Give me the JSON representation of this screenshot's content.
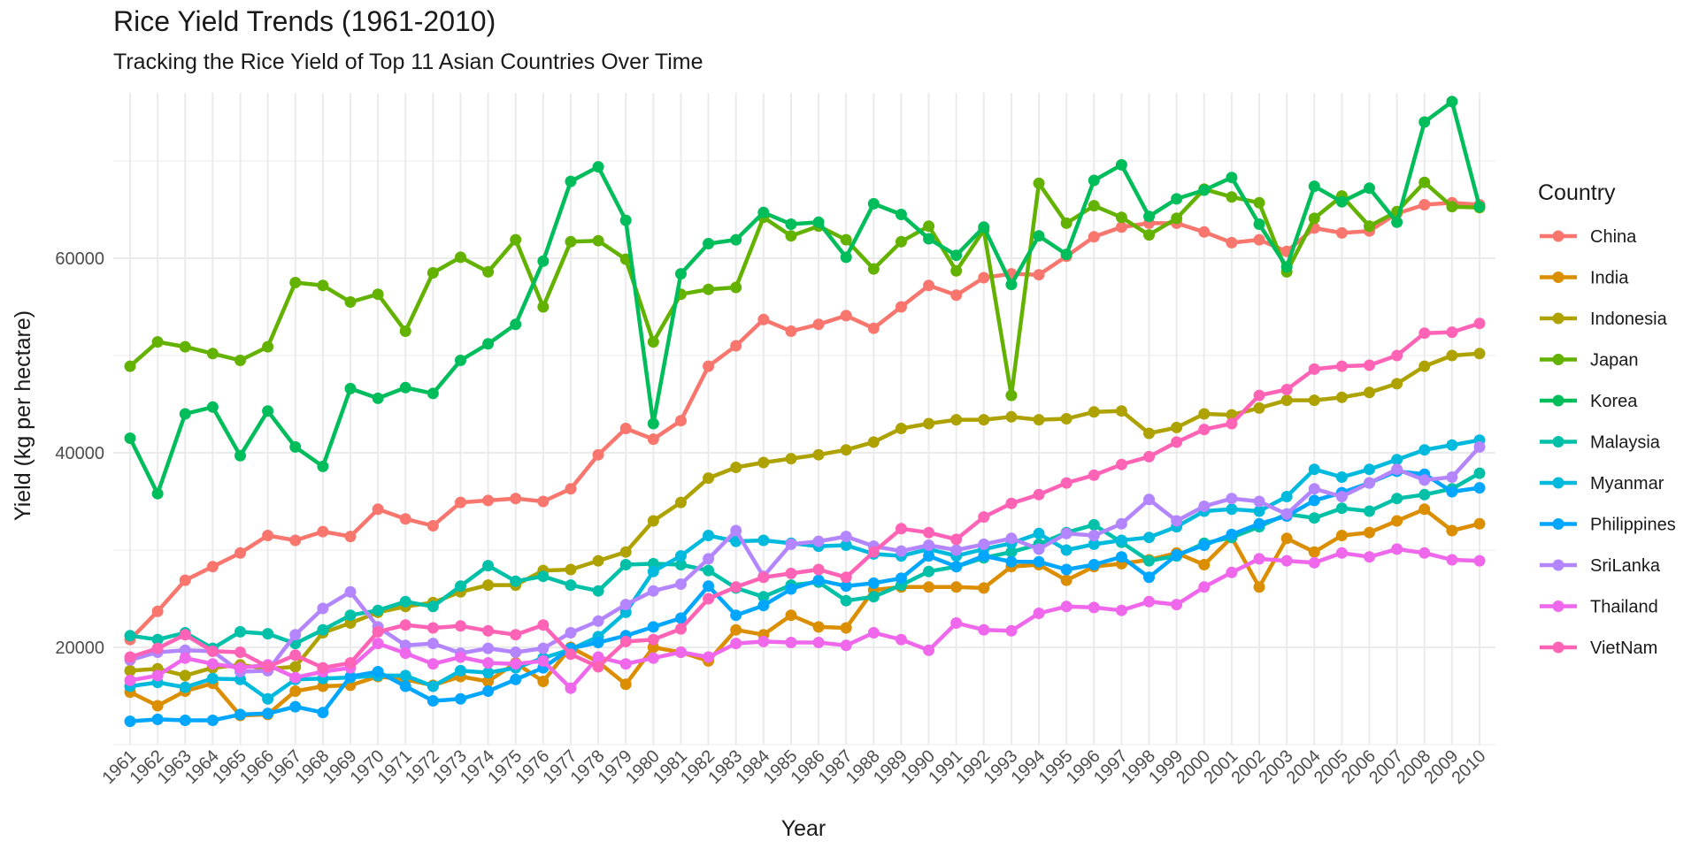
{
  "chart_data": {
    "type": "line",
    "title": "Rice Yield Trends (1961-2010)",
    "subtitle": "Tracking the Rice Yield of Top 11 Asian Countries Over Time",
    "xlabel": "Year",
    "ylabel": "Yield (kg per hectare)",
    "legend_title": "Country",
    "legend_position": "right",
    "grid": true,
    "xlim": [
      1961,
      2010
    ],
    "ylim": [
      10000,
      77000
    ],
    "y_ticks": [
      20000,
      40000,
      60000
    ],
    "x": [
      1961,
      1962,
      1963,
      1964,
      1965,
      1966,
      1967,
      1968,
      1969,
      1970,
      1971,
      1972,
      1973,
      1974,
      1975,
      1976,
      1977,
      1978,
      1979,
      1980,
      1981,
      1982,
      1983,
      1984,
      1985,
      1986,
      1987,
      1988,
      1989,
      1990,
      1991,
      1992,
      1993,
      1994,
      1995,
      1996,
      1997,
      1998,
      1999,
      2000,
      2001,
      2002,
      2003,
      2004,
      2005,
      2006,
      2007,
      2008,
      2009,
      2010
    ],
    "series": [
      {
        "name": "China",
        "color": "#F8766D",
        "values": [
          20800,
          23700,
          26900,
          28300,
          29700,
          31500,
          31000,
          31900,
          31400,
          34200,
          33200,
          32500,
          34900,
          35100,
          35300,
          35000,
          36300,
          39800,
          42500,
          41400,
          43300,
          48900,
          51000,
          53700,
          52500,
          53200,
          54100,
          52800,
          55000,
          57200,
          56200,
          58000,
          58400,
          58300,
          60200,
          62200,
          63200,
          63600,
          63600,
          62700,
          61600,
          61900,
          60700,
          63100,
          62600,
          62800,
          64600,
          65500,
          65700,
          65500
        ]
      },
      {
        "name": "India",
        "color": "#DB8E00",
        "values": [
          15400,
          14000,
          15500,
          16300,
          13000,
          13100,
          15500,
          16000,
          16100,
          17000,
          16700,
          16100,
          17000,
          16500,
          18400,
          16500,
          20000,
          18500,
          16200,
          20000,
          19500,
          18600,
          21800,
          21300,
          23300,
          22100,
          22000,
          25900,
          26200,
          26200,
          26200,
          26100,
          28300,
          28500,
          26900,
          28300,
          28600,
          29000,
          29700,
          28500,
          31300,
          26200,
          31200,
          29800,
          31500,
          31800,
          33000,
          34200,
          32000,
          32700
        ]
      },
      {
        "name": "Indonesia",
        "color": "#AEA200",
        "values": [
          17600,
          17800,
          17100,
          17900,
          18200,
          17800,
          18000,
          21500,
          22500,
          23600,
          24200,
          24600,
          25700,
          26400,
          26400,
          27900,
          28000,
          28900,
          29800,
          33000,
          34900,
          37400,
          38500,
          39000,
          39400,
          39800,
          40300,
          41100,
          42500,
          43000,
          43400,
          43400,
          43700,
          43400,
          43500,
          44200,
          44300,
          42000,
          42600,
          44000,
          43900,
          44600,
          45400,
          45400,
          45700,
          46200,
          47100,
          48900,
          50000,
          50200
        ]
      },
      {
        "name": "Japan",
        "color": "#64B200",
        "values": [
          48900,
          51400,
          50900,
          50200,
          49500,
          50900,
          57500,
          57200,
          55500,
          56300,
          52500,
          58500,
          60100,
          58600,
          61900,
          55000,
          61700,
          61800,
          59900,
          51400,
          56300,
          56800,
          57000,
          64200,
          62300,
          63300,
          61900,
          58900,
          61700,
          63300,
          58700,
          62900,
          45900,
          67700,
          63600,
          65400,
          64200,
          62400,
          64100,
          67100,
          66300,
          65700,
          58600,
          64100,
          66400,
          63300,
          64800,
          67800,
          65300,
          65200
        ]
      },
      {
        "name": "Korea",
        "color": "#00BD5C",
        "values": [
          41500,
          35800,
          44000,
          44700,
          39700,
          44300,
          40600,
          38600,
          46600,
          45600,
          46700,
          46100,
          49500,
          51200,
          53200,
          59700,
          67900,
          69400,
          63900,
          43000,
          58400,
          61500,
          61900,
          64700,
          63500,
          63700,
          60100,
          65600,
          64500,
          62000,
          60300,
          63200,
          57300,
          62300,
          60400,
          68000,
          69600,
          64300,
          66100,
          67000,
          68300,
          63500,
          59100,
          67400,
          65800,
          67200,
          63700,
          74000,
          76100,
          65300
        ]
      },
      {
        "name": "Malaysia",
        "color": "#00C1A7",
        "values": [
          21200,
          20800,
          21500,
          19900,
          21600,
          21400,
          20400,
          21800,
          23300,
          23800,
          24700,
          24200,
          26300,
          28400,
          26800,
          27300,
          26400,
          25800,
          28500,
          28600,
          28500,
          27900,
          26100,
          25200,
          26400,
          26700,
          24800,
          25200,
          26400,
          27800,
          28300,
          29200,
          29800,
          30600,
          31800,
          32600,
          30800,
          28900,
          29400,
          30700,
          31300,
          32400,
          33700,
          33300,
          34300,
          34000,
          35300,
          35700,
          36300,
          37900
        ]
      },
      {
        "name": "Myanmar",
        "color": "#00BADE",
        "values": [
          16000,
          16400,
          15900,
          16800,
          16700,
          14700,
          16700,
          16800,
          16900,
          17100,
          17100,
          16000,
          17600,
          17400,
          17900,
          18900,
          19800,
          21100,
          23600,
          27800,
          29400,
          31500,
          30900,
          31000,
          30700,
          30400,
          30500,
          29600,
          29400,
          30100,
          29400,
          30100,
          30700,
          31700,
          30000,
          30600,
          31000,
          31300,
          32400,
          34000,
          34200,
          34000,
          35500,
          38300,
          37500,
          38300,
          39300,
          40300,
          40800,
          41300
        ]
      },
      {
        "name": "Philippines",
        "color": "#00A6FF",
        "values": [
          12400,
          12600,
          12500,
          12500,
          13100,
          13200,
          13900,
          13300,
          17000,
          17500,
          16000,
          14500,
          14700,
          15500,
          16700,
          17900,
          19900,
          20500,
          21200,
          22100,
          23000,
          26300,
          23300,
          24300,
          26000,
          26900,
          26300,
          26600,
          27100,
          29400,
          28300,
          29400,
          28800,
          28800,
          28000,
          28500,
          29300,
          27200,
          29500,
          30500,
          31600,
          32700,
          33500,
          35100,
          35900,
          36900,
          38100,
          37800,
          36000,
          36400
        ]
      },
      {
        "name": "SriLanka",
        "color": "#B385FF",
        "values": [
          18700,
          19500,
          19700,
          19600,
          17500,
          17600,
          21300,
          24000,
          25700,
          22100,
          20200,
          20400,
          19400,
          19900,
          19500,
          19900,
          21500,
          22700,
          24400,
          25800,
          26500,
          29100,
          32000,
          27300,
          30600,
          30900,
          31400,
          30400,
          29900,
          30500,
          30000,
          30600,
          31200,
          30100,
          31700,
          31500,
          32700,
          35200,
          33000,
          34500,
          35300,
          35000,
          33700,
          36300,
          35500,
          36900,
          38300,
          37200,
          37500,
          40600
        ]
      },
      {
        "name": "Thailand",
        "color": "#EF67EB",
        "values": [
          16600,
          17100,
          18900,
          18300,
          17900,
          18200,
          16900,
          17500,
          17900,
          20400,
          19400,
          18300,
          19000,
          18400,
          18300,
          18600,
          15800,
          19000,
          18300,
          18900,
          19500,
          19000,
          20400,
          20600,
          20500,
          20500,
          20200,
          21500,
          20800,
          19700,
          22500,
          21800,
          21700,
          23500,
          24200,
          24100,
          23800,
          24700,
          24400,
          26200,
          27700,
          29100,
          28900,
          28700,
          29700,
          29300,
          30100,
          29700,
          29000,
          28900
        ]
      },
      {
        "name": "VietNam",
        "color": "#FF63B6",
        "values": [
          19000,
          19900,
          21300,
          19600,
          19500,
          18000,
          19200,
          17900,
          18400,
          21600,
          22300,
          22000,
          22200,
          21700,
          21300,
          22300,
          19300,
          18000,
          20600,
          20800,
          21900,
          25000,
          26200,
          27200,
          27600,
          28000,
          27200,
          29800,
          32200,
          31800,
          31100,
          33400,
          34800,
          35700,
          36900,
          37700,
          38800,
          39600,
          41100,
          42400,
          43000,
          45900,
          46500,
          48600,
          48900,
          49000,
          50000,
          52300,
          52400,
          53300
        ]
      }
    ]
  }
}
